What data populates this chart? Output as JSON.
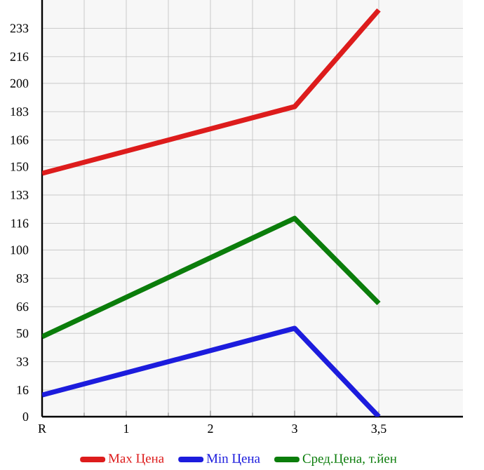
{
  "chart_data": {
    "type": "line",
    "categories": [
      "R",
      "1",
      "2",
      "3",
      "3,5"
    ],
    "series": [
      {
        "name": "Max Цена",
        "color": "#dd1c1c",
        "values": [
          146,
          null,
          null,
          186,
          244
        ]
      },
      {
        "name": "Min Цена",
        "color": "#1c1cdd",
        "values": [
          13,
          null,
          null,
          53,
          0
        ]
      },
      {
        "name": "Сред.Цена, т.йен",
        "color": "#0b7d0b",
        "values": [
          48,
          null,
          null,
          119,
          68
        ]
      }
    ],
    "ylim": [
      0,
      250
    ],
    "yticks": [
      0,
      16,
      33,
      50,
      66,
      83,
      100,
      116,
      133,
      150,
      166,
      183,
      200,
      216,
      233
    ],
    "grid": true,
    "legend": "bottom",
    "marker": "none",
    "line_style": "solid"
  }
}
